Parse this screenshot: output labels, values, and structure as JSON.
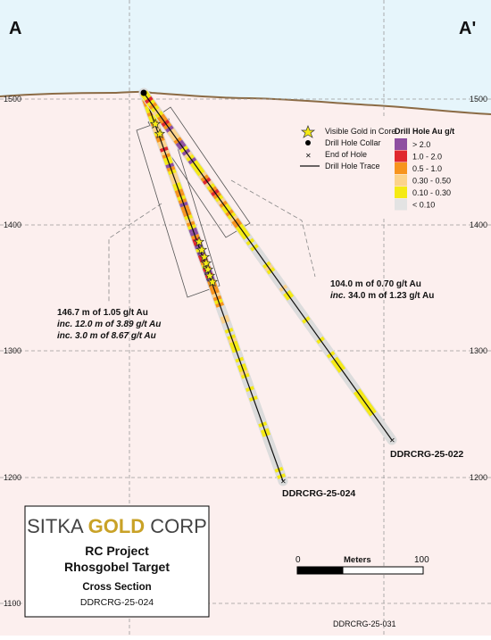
{
  "section": {
    "left_label": "A",
    "right_label": "A'",
    "elevation_labels_left": [
      "1500",
      "1400",
      "1300",
      "1200",
      "1100"
    ],
    "elevation_labels_right": [
      "1500",
      "1400",
      "1300",
      "1200"
    ],
    "colors": {
      "sky": "#e6f5fb",
      "ground": "#fcefee",
      "surface_line": "#8b6b45",
      "hole_trace": "#111111",
      "halo": "#dcdcdc"
    }
  },
  "legend": {
    "symbols_title": "",
    "items": [
      {
        "icon": "star-icon",
        "label": "Visible Gold in Core"
      },
      {
        "icon": "collar-dot-icon",
        "label": "Drill Hole Collar"
      },
      {
        "icon": "end-of-hole-x-icon",
        "label": "End of Hole"
      },
      {
        "icon": "trace-line-icon",
        "label": "Drill Hole Trace"
      }
    ],
    "grade_title": "Drill Hole Au g/t",
    "grade_bins": [
      {
        "label": "> 2.0",
        "color": "#8e4fa0"
      },
      {
        "label": "1.0 - 2.0",
        "color": "#e0282e"
      },
      {
        "label": "0.5 - 1.0",
        "color": "#f7941d"
      },
      {
        "label": "0.30 - 0.50",
        "color": "#fcd38a"
      },
      {
        "label": "0.10 - 0.30",
        "color": "#f5ea14"
      },
      {
        "label": "< 0.10",
        "color": "#e3e3e3"
      }
    ]
  },
  "holes": [
    {
      "name": "DDRCRG-25-024"
    },
    {
      "name": "DDRCRG-25-022"
    }
  ],
  "annotations": {
    "hole_024": {
      "line1": "146.7 m of 1.05 g/t Au",
      "line2": "inc. 12.0 m of 3.89 g/t Au",
      "line3": "inc. 3.0 m of 8.67 g/t Au"
    },
    "hole_022": {
      "line1": "104.0 m of 0.70 g/t Au",
      "line2_prefix": "inc.",
      "line2_rest": " 34.0 m of 1.23 g/t Au"
    }
  },
  "title_box": {
    "logo_word1": "SITKA",
    "logo_word2": "GOLD",
    "logo_word3": "CORP",
    "project": "RC Project",
    "target": "Rhosgobel Target",
    "view": "Cross Section",
    "hole": "DDRCRG-25-024"
  },
  "scale_bar": {
    "start": "0",
    "unit": "Meters",
    "end": "100"
  },
  "footer_code": "DDRCRG-25-031"
}
